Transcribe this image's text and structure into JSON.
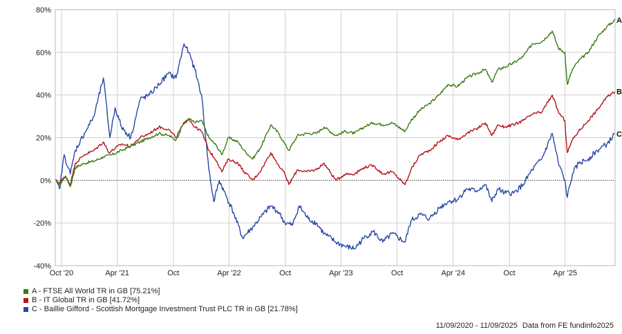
{
  "chart_data": {
    "type": "line",
    "ylim": [
      -40,
      80
    ],
    "yticks": [
      -40,
      -20,
      0,
      20,
      40,
      60,
      80
    ],
    "ytick_labels": [
      "-40%",
      "-20%",
      "0%",
      "20%",
      "40%",
      "60%",
      "80%"
    ],
    "x_ticks": [
      {
        "date": "2020-10-01",
        "label": "Oct '20"
      },
      {
        "date": "2021-04-01",
        "label": "Apr '21"
      },
      {
        "date": "2021-10-01",
        "label": "Oct"
      },
      {
        "date": "2022-04-01",
        "label": "Apr '22"
      },
      {
        "date": "2022-10-01",
        "label": "Oct"
      },
      {
        "date": "2023-04-01",
        "label": "Apr '23"
      },
      {
        "date": "2023-10-01",
        "label": "Oct"
      },
      {
        "date": "2024-04-01",
        "label": "Apr '24"
      },
      {
        "date": "2024-10-01",
        "label": "Oct"
      },
      {
        "date": "2025-04-01",
        "label": "Apr '25"
      }
    ],
    "xlim": [
      "2020-09-11",
      "2025-09-11"
    ],
    "grid": true,
    "zero_line": "dotted",
    "series": [
      {
        "name": "A - FTSE All World TR in GB [75.21%]",
        "end_label": "A",
        "color": "#3a7a14",
        "points": [
          [
            "2020-09-11",
            0
          ],
          [
            "2020-09-25",
            -2
          ],
          [
            "2020-10-15",
            2
          ],
          [
            "2020-10-30",
            -3
          ],
          [
            "2020-11-15",
            6
          ],
          [
            "2020-12-15",
            8
          ],
          [
            "2021-01-15",
            9
          ],
          [
            "2021-02-15",
            11
          ],
          [
            "2021-03-15",
            12
          ],
          [
            "2021-04-15",
            14
          ],
          [
            "2021-05-15",
            16
          ],
          [
            "2021-06-15",
            18
          ],
          [
            "2021-07-15",
            20
          ],
          [
            "2021-08-15",
            22
          ],
          [
            "2021-09-15",
            21
          ],
          [
            "2021-10-10",
            19
          ],
          [
            "2021-11-01",
            26
          ],
          [
            "2021-11-20",
            29
          ],
          [
            "2021-12-10",
            27
          ],
          [
            "2022-01-01",
            28
          ],
          [
            "2022-01-25",
            20
          ],
          [
            "2022-02-20",
            16
          ],
          [
            "2022-03-08",
            12
          ],
          [
            "2022-03-30",
            20
          ],
          [
            "2022-04-30",
            18
          ],
          [
            "2022-05-20",
            14
          ],
          [
            "2022-06-17",
            10
          ],
          [
            "2022-07-15",
            16
          ],
          [
            "2022-08-15",
            26
          ],
          [
            "2022-09-10",
            22
          ],
          [
            "2022-09-30",
            17
          ],
          [
            "2022-10-13",
            14
          ],
          [
            "2022-11-10",
            21
          ],
          [
            "2022-12-10",
            22
          ],
          [
            "2023-01-10",
            22
          ],
          [
            "2023-02-05",
            25
          ],
          [
            "2023-03-15",
            21
          ],
          [
            "2023-04-15",
            23
          ],
          [
            "2023-05-15",
            22
          ],
          [
            "2023-06-15",
            25
          ],
          [
            "2023-07-15",
            27
          ],
          [
            "2023-08-15",
            26
          ],
          [
            "2023-09-15",
            27
          ],
          [
            "2023-10-27",
            23
          ],
          [
            "2023-11-15",
            28
          ],
          [
            "2023-12-15",
            33
          ],
          [
            "2024-01-15",
            36
          ],
          [
            "2024-02-15",
            40
          ],
          [
            "2024-03-15",
            45
          ],
          [
            "2024-04-15",
            44
          ],
          [
            "2024-05-15",
            48
          ],
          [
            "2024-06-15",
            50
          ],
          [
            "2024-07-15",
            52
          ],
          [
            "2024-08-05",
            46
          ],
          [
            "2024-08-25",
            52
          ],
          [
            "2024-09-15",
            53
          ],
          [
            "2024-10-15",
            55
          ],
          [
            "2024-11-15",
            58
          ],
          [
            "2024-12-15",
            64
          ],
          [
            "2025-01-15",
            65
          ],
          [
            "2025-02-18",
            70
          ],
          [
            "2025-03-10",
            62
          ],
          [
            "2025-03-31",
            60
          ],
          [
            "2025-04-08",
            45
          ],
          [
            "2025-04-25",
            52
          ],
          [
            "2025-05-15",
            56
          ],
          [
            "2025-06-15",
            60
          ],
          [
            "2025-07-15",
            67
          ],
          [
            "2025-08-15",
            72
          ],
          [
            "2025-09-11",
            75.21
          ]
        ]
      },
      {
        "name": "B - IT Global TR in GB [41.72%]",
        "end_label": "B",
        "color": "#b3141b",
        "points": [
          [
            "2020-09-11",
            0
          ],
          [
            "2020-09-25",
            -1
          ],
          [
            "2020-10-15",
            2
          ],
          [
            "2020-10-30",
            -2
          ],
          [
            "2020-11-15",
            8
          ],
          [
            "2020-12-15",
            12
          ],
          [
            "2021-01-15",
            14
          ],
          [
            "2021-02-15",
            18
          ],
          [
            "2021-03-05",
            13
          ],
          [
            "2021-04-15",
            17
          ],
          [
            "2021-05-15",
            16
          ],
          [
            "2021-06-15",
            20
          ],
          [
            "2021-07-15",
            22
          ],
          [
            "2021-08-15",
            25
          ],
          [
            "2021-09-15",
            24
          ],
          [
            "2021-10-10",
            20
          ],
          [
            "2021-11-01",
            26
          ],
          [
            "2021-11-20",
            29
          ],
          [
            "2021-12-10",
            25
          ],
          [
            "2022-01-01",
            23
          ],
          [
            "2022-01-25",
            14
          ],
          [
            "2022-02-20",
            9
          ],
          [
            "2022-03-08",
            4
          ],
          [
            "2022-03-30",
            10
          ],
          [
            "2022-04-30",
            8
          ],
          [
            "2022-05-20",
            4
          ],
          [
            "2022-06-17",
            0
          ],
          [
            "2022-07-15",
            5
          ],
          [
            "2022-08-15",
            13
          ],
          [
            "2022-09-10",
            7
          ],
          [
            "2022-09-30",
            3
          ],
          [
            "2022-10-13",
            -2
          ],
          [
            "2022-11-10",
            5
          ],
          [
            "2022-12-10",
            4
          ],
          [
            "2023-01-10",
            5
          ],
          [
            "2023-02-05",
            8
          ],
          [
            "2023-03-15",
            0
          ],
          [
            "2023-04-15",
            3
          ],
          [
            "2023-05-15",
            3
          ],
          [
            "2023-06-15",
            6
          ],
          [
            "2023-07-15",
            7
          ],
          [
            "2023-08-15",
            3
          ],
          [
            "2023-09-15",
            4
          ],
          [
            "2023-10-27",
            -2
          ],
          [
            "2023-11-15",
            5
          ],
          [
            "2023-12-15",
            12
          ],
          [
            "2024-01-15",
            14
          ],
          [
            "2024-02-15",
            18
          ],
          [
            "2024-03-15",
            21
          ],
          [
            "2024-04-15",
            19
          ],
          [
            "2024-05-15",
            22
          ],
          [
            "2024-06-15",
            24
          ],
          [
            "2024-07-15",
            27
          ],
          [
            "2024-08-05",
            21
          ],
          [
            "2024-08-25",
            26
          ],
          [
            "2024-09-15",
            25
          ],
          [
            "2024-10-15",
            26
          ],
          [
            "2024-11-15",
            28
          ],
          [
            "2024-12-15",
            31
          ],
          [
            "2025-01-15",
            32
          ],
          [
            "2025-02-18",
            40
          ],
          [
            "2025-03-10",
            32
          ],
          [
            "2025-03-31",
            28
          ],
          [
            "2025-04-08",
            13
          ],
          [
            "2025-04-25",
            19
          ],
          [
            "2025-05-15",
            23
          ],
          [
            "2025-06-15",
            28
          ],
          [
            "2025-07-15",
            33
          ],
          [
            "2025-08-15",
            39
          ],
          [
            "2025-09-11",
            41.72
          ]
        ]
      },
      {
        "name": "C - Baillie Gifford - Scottish Mortgage Investment Trust PLC TR in GB [21.78%]",
        "end_label": "C",
        "color": "#2648a6",
        "points": [
          [
            "2020-09-11",
            0
          ],
          [
            "2020-09-25",
            -4
          ],
          [
            "2020-10-10",
            12
          ],
          [
            "2020-10-30",
            3
          ],
          [
            "2020-11-15",
            14
          ],
          [
            "2020-12-15",
            22
          ],
          [
            "2021-01-15",
            30
          ],
          [
            "2021-02-15",
            48
          ],
          [
            "2021-03-08",
            20
          ],
          [
            "2021-03-25",
            34
          ],
          [
            "2021-04-15",
            25
          ],
          [
            "2021-05-15",
            20
          ],
          [
            "2021-06-15",
            38
          ],
          [
            "2021-07-15",
            40
          ],
          [
            "2021-08-15",
            45
          ],
          [
            "2021-09-15",
            50
          ],
          [
            "2021-10-10",
            48
          ],
          [
            "2021-11-05",
            64
          ],
          [
            "2021-11-20",
            60
          ],
          [
            "2021-12-10",
            52
          ],
          [
            "2022-01-01",
            40
          ],
          [
            "2022-01-25",
            5
          ],
          [
            "2022-02-10",
            -10
          ],
          [
            "2022-02-28",
            0
          ],
          [
            "2022-03-15",
            -5
          ],
          [
            "2022-04-15",
            -15
          ],
          [
            "2022-05-15",
            -27
          ],
          [
            "2022-06-17",
            -22
          ],
          [
            "2022-07-15",
            -17
          ],
          [
            "2022-08-15",
            -12
          ],
          [
            "2022-09-10",
            -15
          ],
          [
            "2022-09-30",
            -20
          ],
          [
            "2022-10-25",
            -21
          ],
          [
            "2022-11-15",
            -12
          ],
          [
            "2022-12-15",
            -18
          ],
          [
            "2023-01-10",
            -20
          ],
          [
            "2023-02-05",
            -25
          ],
          [
            "2023-03-15",
            -29
          ],
          [
            "2023-04-15",
            -31
          ],
          [
            "2023-05-15",
            -32
          ],
          [
            "2023-06-15",
            -27
          ],
          [
            "2023-07-15",
            -24
          ],
          [
            "2023-08-15",
            -29
          ],
          [
            "2023-09-15",
            -25
          ],
          [
            "2023-10-27",
            -29
          ],
          [
            "2023-11-15",
            -19
          ],
          [
            "2023-12-15",
            -16
          ],
          [
            "2024-01-15",
            -18
          ],
          [
            "2024-02-15",
            -13
          ],
          [
            "2024-03-15",
            -10
          ],
          [
            "2024-04-15",
            -9
          ],
          [
            "2024-05-15",
            -4
          ],
          [
            "2024-06-15",
            -5
          ],
          [
            "2024-07-15",
            -2
          ],
          [
            "2024-08-05",
            -10
          ],
          [
            "2024-08-25",
            -4
          ],
          [
            "2024-09-15",
            -6
          ],
          [
            "2024-10-15",
            -6
          ],
          [
            "2024-11-15",
            -2
          ],
          [
            "2024-12-15",
            5
          ],
          [
            "2025-01-15",
            10
          ],
          [
            "2025-02-18",
            22
          ],
          [
            "2025-03-10",
            8
          ],
          [
            "2025-03-31",
            0
          ],
          [
            "2025-04-08",
            -8
          ],
          [
            "2025-04-25",
            3
          ],
          [
            "2025-05-15",
            8
          ],
          [
            "2025-06-15",
            10
          ],
          [
            "2025-07-15",
            14
          ],
          [
            "2025-08-15",
            17
          ],
          [
            "2025-09-11",
            21.78
          ]
        ]
      }
    ]
  },
  "footer": {
    "date_range": "11/09/2020 - 11/09/2025",
    "source": "Data from FE fundinfo2025"
  }
}
